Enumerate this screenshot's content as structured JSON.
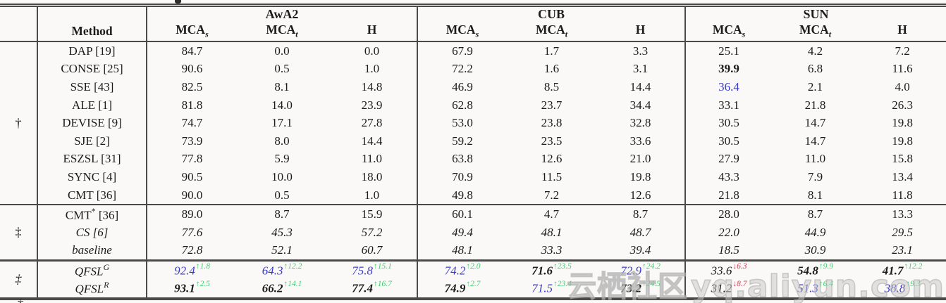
{
  "colors": {
    "bg": "#faf9f7",
    "ink": "#1c1c1c",
    "rule": "#4a4a4a",
    "blue": "#3a3ace",
    "green": "#3ecf70",
    "red": "#d03c50"
  },
  "header": {
    "method": "Method",
    "groups": [
      {
        "label": "AwA2"
      },
      {
        "label": "CUB"
      },
      {
        "label": "SUN"
      }
    ],
    "metrics": [
      {
        "base": "MCA",
        "sub": "s"
      },
      {
        "base": "MCA",
        "sub": "t"
      },
      {
        "base": "H",
        "sub": ""
      }
    ]
  },
  "table": {
    "sections": [
      {
        "marker": "†",
        "rows": [
          {
            "italic": false,
            "method": {
              "name": "DAP",
              "sup": "",
              "ref": " [19]"
            },
            "cells": [
              {
                "v": "84.7"
              },
              {
                "v": "0.0"
              },
              {
                "v": "0.0"
              },
              {
                "v": "67.9"
              },
              {
                "v": "1.7"
              },
              {
                "v": "3.3"
              },
              {
                "v": "25.1"
              },
              {
                "v": "4.2"
              },
              {
                "v": "7.2"
              }
            ]
          },
          {
            "italic": false,
            "method": {
              "name": "CONSE",
              "sup": "",
              "ref": " [25]"
            },
            "cells": [
              {
                "v": "90.6"
              },
              {
                "v": "0.5"
              },
              {
                "v": "1.0"
              },
              {
                "v": "72.2"
              },
              {
                "v": "1.6"
              },
              {
                "v": "3.1"
              },
              {
                "v": "39.9",
                "c": "bold"
              },
              {
                "v": "6.8"
              },
              {
                "v": "11.6"
              }
            ]
          },
          {
            "italic": false,
            "method": {
              "name": "SSE",
              "sup": "",
              "ref": " [43]"
            },
            "cells": [
              {
                "v": "82.5"
              },
              {
                "v": "8.1"
              },
              {
                "v": "14.8"
              },
              {
                "v": "46.9"
              },
              {
                "v": "8.5"
              },
              {
                "v": "14.4"
              },
              {
                "v": "36.4",
                "c": "blue"
              },
              {
                "v": "2.1"
              },
              {
                "v": "4.0"
              }
            ]
          },
          {
            "italic": false,
            "method": {
              "name": "ALE",
              "sup": "",
              "ref": " [1]"
            },
            "cells": [
              {
                "v": "81.8"
              },
              {
                "v": "14.0"
              },
              {
                "v": "23.9"
              },
              {
                "v": "62.8"
              },
              {
                "v": "23.7"
              },
              {
                "v": "34.4"
              },
              {
                "v": "33.1"
              },
              {
                "v": "21.8"
              },
              {
                "v": "26.3"
              }
            ]
          },
          {
            "italic": false,
            "method": {
              "name": "DEVISE",
              "sup": "",
              "ref": " [9]"
            },
            "cells": [
              {
                "v": "74.7"
              },
              {
                "v": "17.1"
              },
              {
                "v": "27.8"
              },
              {
                "v": "53.0"
              },
              {
                "v": "23.8"
              },
              {
                "v": "32.8"
              },
              {
                "v": "30.5"
              },
              {
                "v": "14.7"
              },
              {
                "v": "19.8"
              }
            ]
          },
          {
            "italic": false,
            "method": {
              "name": "SJE",
              "sup": "",
              "ref": " [2]"
            },
            "cells": [
              {
                "v": "73.9"
              },
              {
                "v": "8.0"
              },
              {
                "v": "14.4"
              },
              {
                "v": "59.2"
              },
              {
                "v": "23.5"
              },
              {
                "v": "33.6"
              },
              {
                "v": "30.5"
              },
              {
                "v": "14.7"
              },
              {
                "v": "19.8"
              }
            ]
          },
          {
            "italic": false,
            "method": {
              "name": "ESZSL",
              "sup": "",
              "ref": " [31]"
            },
            "cells": [
              {
                "v": "77.8"
              },
              {
                "v": "5.9"
              },
              {
                "v": "11.0"
              },
              {
                "v": "63.8"
              },
              {
                "v": "12.6"
              },
              {
                "v": "21.0"
              },
              {
                "v": "27.9"
              },
              {
                "v": "11.0"
              },
              {
                "v": "15.8"
              }
            ]
          },
          {
            "italic": false,
            "method": {
              "name": "SYNC",
              "sup": "",
              "ref": " [4]"
            },
            "cells": [
              {
                "v": "90.5"
              },
              {
                "v": "10.0"
              },
              {
                "v": "18.0"
              },
              {
                "v": "70.9"
              },
              {
                "v": "11.5"
              },
              {
                "v": "19.8"
              },
              {
                "v": "43.3"
              },
              {
                "v": "7.9"
              },
              {
                "v": "13.4"
              }
            ]
          },
          {
            "italic": false,
            "method": {
              "name": "CMT",
              "sup": "",
              "ref": " [36]"
            },
            "cells": [
              {
                "v": "90.0"
              },
              {
                "v": "0.5"
              },
              {
                "v": "1.0"
              },
              {
                "v": "49.8"
              },
              {
                "v": "7.2"
              },
              {
                "v": "12.6"
              },
              {
                "v": "21.8"
              },
              {
                "v": "8.1"
              },
              {
                "v": "11.8"
              }
            ]
          }
        ]
      },
      {
        "marker": "‡",
        "rows": [
          {
            "italic": false,
            "method": {
              "name": "CMT",
              "sup": "*",
              "ref": " [36]"
            },
            "cells": [
              {
                "v": "89.0"
              },
              {
                "v": "8.7"
              },
              {
                "v": "15.9"
              },
              {
                "v": "60.1"
              },
              {
                "v": "4.7"
              },
              {
                "v": "8.7"
              },
              {
                "v": "28.0"
              },
              {
                "v": "8.7"
              },
              {
                "v": "13.3"
              }
            ]
          },
          {
            "italic": true,
            "method": {
              "name": "CS",
              "sup": "",
              "ref": " [6]"
            },
            "cells": [
              {
                "v": "77.6"
              },
              {
                "v": "45.3"
              },
              {
                "v": "57.2"
              },
              {
                "v": "49.4"
              },
              {
                "v": "48.1"
              },
              {
                "v": "48.7"
              },
              {
                "v": "22.0"
              },
              {
                "v": "44.9"
              },
              {
                "v": "29.5"
              }
            ]
          },
          {
            "italic": true,
            "method": {
              "name": "baseline",
              "sup": "",
              "ref": ""
            },
            "cells": [
              {
                "v": "72.8"
              },
              {
                "v": "52.1"
              },
              {
                "v": "60.7"
              },
              {
                "v": "48.1"
              },
              {
                "v": "33.3"
              },
              {
                "v": "39.4"
              },
              {
                "v": "18.5"
              },
              {
                "v": "30.9"
              },
              {
                "v": "23.1"
              }
            ]
          }
        ]
      },
      {
        "marker": "‡",
        "rows": [
          {
            "italic": true,
            "method": {
              "name": "QFSL",
              "sup": "G",
              "ref": ""
            },
            "cells": [
              {
                "v": "92.4",
                "c": "blue",
                "s": "↑1.8",
                "sc": "green"
              },
              {
                "v": "64.3",
                "c": "blue",
                "s": "↑12.2",
                "sc": "green"
              },
              {
                "v": "75.8",
                "c": "blue",
                "s": "↑15.1",
                "sc": "green"
              },
              {
                "v": "74.2",
                "c": "blue",
                "s": "↑2.0",
                "sc": "green"
              },
              {
                "v": "71.6",
                "c": "bold",
                "s": "↑23.5",
                "sc": "green"
              },
              {
                "v": "72.9",
                "c": "blue",
                "s": "↑24.2",
                "sc": "green"
              },
              {
                "v": "33.6",
                "c": "",
                "s": "↓6.3",
                "sc": "red"
              },
              {
                "v": "54.8",
                "c": "bold",
                "s": "↑9.9",
                "sc": "green"
              },
              {
                "v": "41.7",
                "c": "bold",
                "s": "↑12.2",
                "sc": "green"
              }
            ]
          },
          {
            "italic": true,
            "method": {
              "name": "QFSL",
              "sup": "R",
              "ref": ""
            },
            "cells": [
              {
                "v": "93.1",
                "c": "bold",
                "s": "↑2.5",
                "sc": "green"
              },
              {
                "v": "66.2",
                "c": "bold",
                "s": "↑14.1",
                "sc": "green"
              },
              {
                "v": "77.4",
                "c": "bold",
                "s": "↑16.7",
                "sc": "green"
              },
              {
                "v": "74.9",
                "c": "bold",
                "s": "↑2.7",
                "sc": "green"
              },
              {
                "v": "71.5",
                "c": "blue",
                "s": "↑23.4",
                "sc": "green"
              },
              {
                "v": "73.2",
                "c": "bold",
                "s": "↑24.5",
                "sc": "green"
              },
              {
                "v": "31.2",
                "c": "",
                "s": "↓8.7",
                "sc": "red"
              },
              {
                "v": "51.3",
                "c": "blue",
                "s": "↑6.4",
                "sc": "green"
              },
              {
                "v": "38.8",
                "c": "blue",
                "s": "↑9.3",
                "sc": "green"
              }
            ]
          }
        ]
      }
    ]
  },
  "watermark": {
    "cjk": "云栖社区",
    "latin": "yq.aliyun.com"
  },
  "footnote_marker": "†"
}
